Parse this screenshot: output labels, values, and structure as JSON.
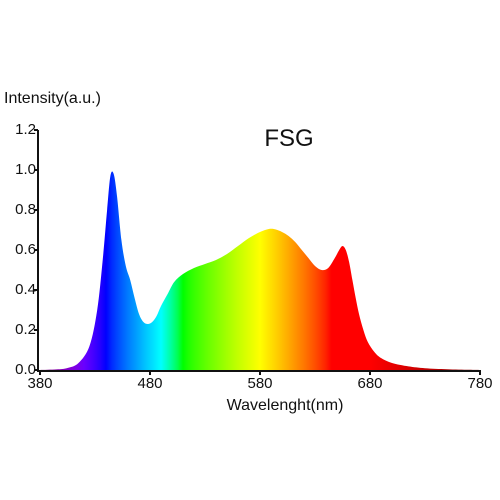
{
  "chart_data": {
    "type": "area",
    "title": "FSG",
    "ylabel": "Intensity(a.u.)",
    "xlabel": "Wavelenght(nm)",
    "xlim": [
      380,
      780
    ],
    "ylim": [
      0,
      1.2
    ],
    "x_ticks": [
      380,
      480,
      580,
      680,
      780
    ],
    "x_tick_labels": [
      "380",
      "480",
      "580",
      "680",
      "780"
    ],
    "y_ticks": [
      0,
      0.2,
      0.4,
      0.6,
      0.8,
      1.0,
      1.2
    ],
    "y_tick_labels": [
      "0.0",
      "0.2",
      "0.4",
      "0.6",
      "0.8",
      "1.0",
      "1.2"
    ],
    "grid": false,
    "fill": "spectral",
    "series": [
      {
        "x": [
          380,
          395,
          405,
          415,
          425,
          432,
          437,
          441,
          444,
          447,
          450,
          454,
          458,
          462,
          466,
          470,
          474,
          478,
          482,
          486,
          490,
          496,
          502,
          510,
          520,
          530,
          540,
          550,
          560,
          570,
          580,
          588,
          594,
          600,
          606,
          612,
          618,
          624,
          630,
          636,
          642,
          648,
          652,
          655,
          658,
          661,
          664,
          667,
          670,
          674,
          678,
          684,
          690,
          700,
          715,
          730,
          750,
          770,
          780
        ],
        "values": [
          0,
          0.003,
          0.01,
          0.035,
          0.12,
          0.3,
          0.55,
          0.8,
          0.97,
          0.98,
          0.87,
          0.65,
          0.52,
          0.45,
          0.36,
          0.28,
          0.24,
          0.23,
          0.24,
          0.27,
          0.32,
          0.38,
          0.44,
          0.48,
          0.51,
          0.53,
          0.55,
          0.58,
          0.62,
          0.66,
          0.69,
          0.705,
          0.703,
          0.69,
          0.67,
          0.64,
          0.6,
          0.56,
          0.52,
          0.5,
          0.51,
          0.56,
          0.6,
          0.62,
          0.6,
          0.54,
          0.45,
          0.36,
          0.28,
          0.2,
          0.14,
          0.09,
          0.06,
          0.035,
          0.018,
          0.009,
          0.004,
          0.001,
          0
        ]
      }
    ]
  }
}
